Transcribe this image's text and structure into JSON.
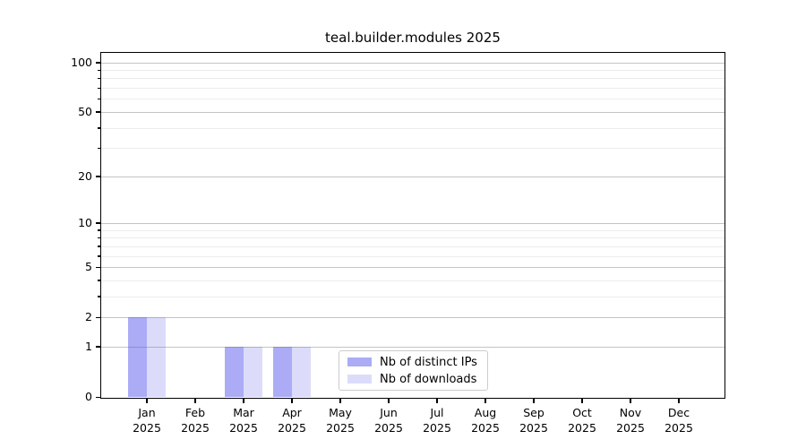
{
  "chart_data": {
    "type": "bar",
    "title": "teal.builder.modules 2025",
    "y_scale": "log1p",
    "categories": [
      "Jan",
      "Feb",
      "Mar",
      "Apr",
      "May",
      "Jun",
      "Jul",
      "Aug",
      "Sep",
      "Oct",
      "Nov",
      "Dec"
    ],
    "x_tick_second_line": "2025",
    "series": [
      {
        "name": "Nb of distinct IPs",
        "color": "#abacf5",
        "values": [
          2,
          0,
          1,
          1,
          0,
          0,
          0,
          0,
          0,
          0,
          0,
          0
        ]
      },
      {
        "name": "Nb of downloads",
        "color": "#dcdcfa",
        "values": [
          2,
          0,
          1,
          1,
          0,
          0,
          0,
          0,
          0,
          0,
          0,
          0
        ]
      }
    ],
    "y_axis": {
      "major_ticks": [
        0,
        1,
        2,
        5,
        10,
        20,
        50,
        100
      ],
      "minor_ticks": [
        3,
        4,
        6,
        7,
        8,
        9,
        30,
        40,
        60,
        70,
        80,
        90
      ]
    },
    "ylim": [
      0,
      115
    ],
    "grid": "major+minor",
    "legend_position": "bottom-center"
  }
}
